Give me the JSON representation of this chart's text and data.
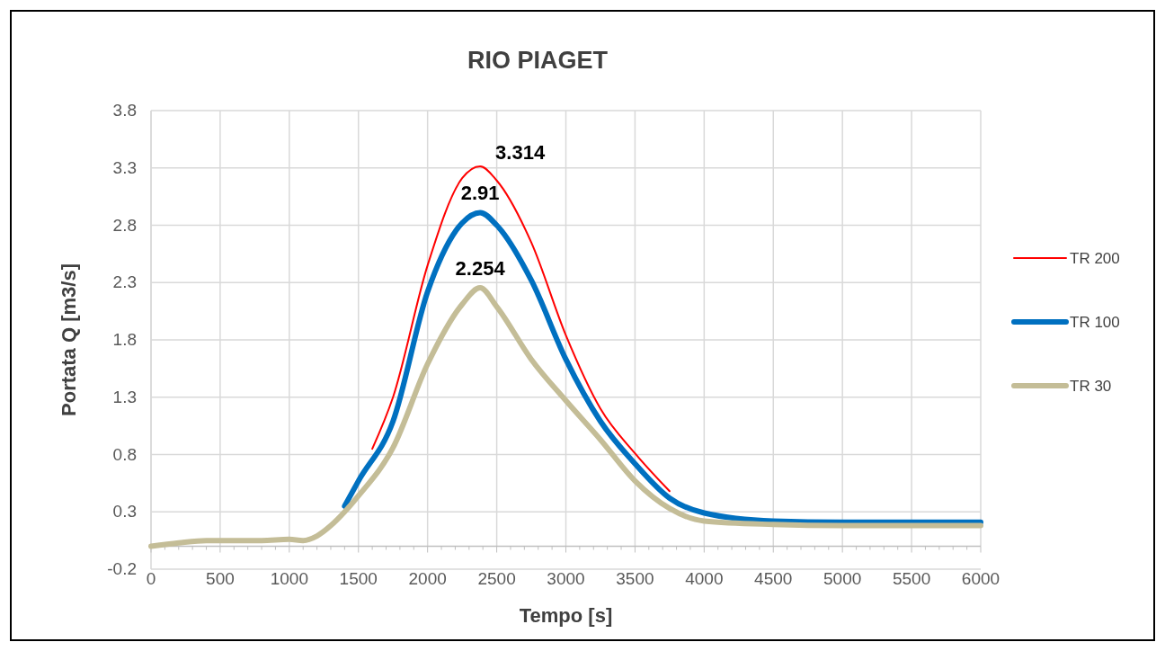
{
  "chart_data": {
    "type": "line",
    "title": "RIO PIAGET",
    "xlabel": "Tempo [s]",
    "ylabel": "Portata Q [m3/s]",
    "xlim": [
      0,
      6000
    ],
    "xticks": [
      0,
      500,
      1000,
      1500,
      2000,
      2500,
      3000,
      3500,
      4000,
      4500,
      5000,
      5500,
      6000
    ],
    "ylim": [
      -0.2,
      3.8
    ],
    "yticks": [
      -0.2,
      0.3,
      0.8,
      1.3,
      1.8,
      2.3,
      2.8,
      3.3,
      3.8
    ],
    "grid": true,
    "legend": "right",
    "line_style": "solid",
    "series": [
      {
        "name": "TR 200",
        "color": "#ff0000",
        "x": [
          1600,
          1750,
          2000,
          2250,
          2380,
          2500,
          2750,
          3000,
          3250,
          3500,
          3750
        ],
        "values": [
          0.85,
          1.3,
          2.45,
          3.21,
          3.314,
          3.19,
          2.65,
          1.84,
          1.2,
          0.81,
          0.48
        ],
        "value_labels": [
          null,
          null,
          null,
          null,
          "3.314",
          null,
          null,
          null,
          null,
          null,
          null
        ]
      },
      {
        "name": "TR 100",
        "color": "#0070c0",
        "x": [
          1400,
          1500,
          1750,
          2000,
          2250,
          2380,
          2500,
          2750,
          3000,
          3250,
          3500,
          3750,
          4000,
          4500,
          5000,
          6000
        ],
        "values": [
          0.35,
          0.57,
          1.09,
          2.22,
          2.82,
          2.91,
          2.8,
          2.32,
          1.63,
          1.09,
          0.72,
          0.42,
          0.29,
          0.22,
          0.21,
          0.21
        ],
        "value_labels": [
          null,
          null,
          null,
          null,
          null,
          "2.91",
          null,
          null,
          null,
          null,
          null,
          null,
          null,
          null,
          null,
          null
        ]
      },
      {
        "name": "TR 30",
        "color": "#c4bd97",
        "x": [
          0,
          200,
          400,
          800,
          1000,
          1100,
          1200,
          1300,
          1400,
          1500,
          1750,
          2000,
          2250,
          2380,
          2500,
          2750,
          3000,
          3250,
          3500,
          3750,
          4000,
          4500,
          5000,
          6000
        ],
        "values": [
          0,
          0.03,
          0.05,
          0.05,
          0.06,
          0.05,
          0.09,
          0.18,
          0.3,
          0.44,
          0.86,
          1.59,
          2.11,
          2.254,
          2.09,
          1.63,
          1.27,
          0.93,
          0.57,
          0.33,
          0.22,
          0.19,
          0.18,
          0.18
        ],
        "value_labels": [
          null,
          null,
          null,
          null,
          null,
          null,
          null,
          null,
          null,
          null,
          null,
          null,
          null,
          "2.254",
          null,
          null,
          null,
          null,
          null,
          null,
          null,
          null,
          null,
          null
        ]
      }
    ]
  }
}
